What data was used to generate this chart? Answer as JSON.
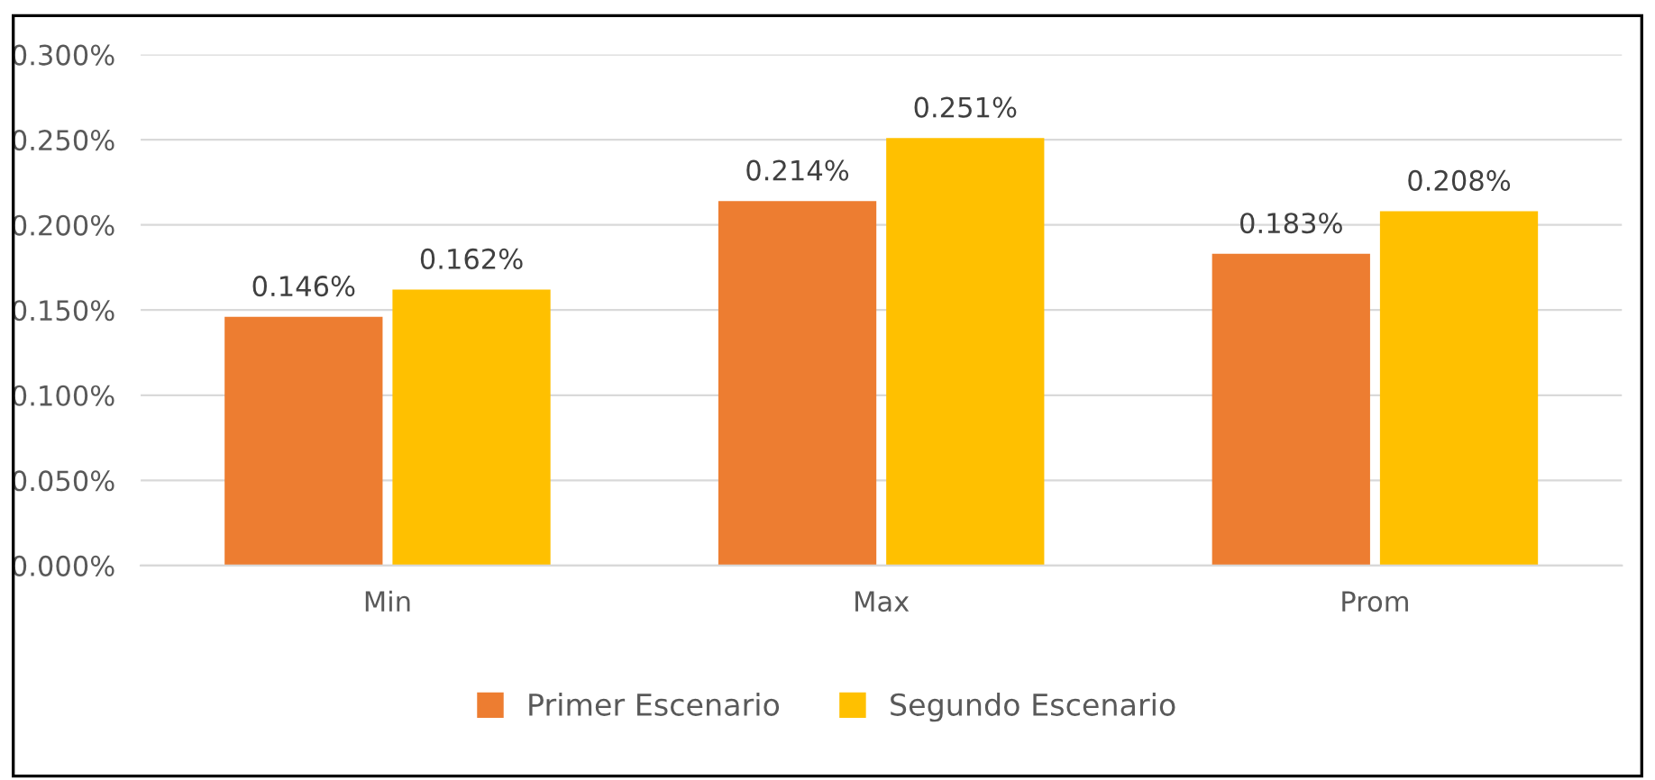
{
  "chart_data": {
    "type": "bar",
    "categories": [
      "Min",
      "Max",
      "Prom"
    ],
    "series": [
      {
        "name": "Primer Escenario",
        "color": "#ed7d31",
        "values": [
          0.146,
          0.214,
          0.183
        ],
        "value_labels": [
          "0.146%",
          "0.214%",
          "0.183%"
        ]
      },
      {
        "name": "Segundo Escenario",
        "color": "#ffc000",
        "values": [
          0.162,
          0.251,
          0.208
        ],
        "value_labels": [
          "0.162%",
          "0.251%",
          "0.208%"
        ]
      }
    ],
    "ylim": [
      0,
      0.3
    ],
    "yticks": [
      {
        "value": 0,
        "label": "0.000%"
      },
      {
        "value": 0.05,
        "label": "0.050%"
      },
      {
        "value": 0.1,
        "label": "0.100%"
      },
      {
        "value": 0.15,
        "label": "0.150%"
      },
      {
        "value": 0.2,
        "label": "0.200%"
      },
      {
        "value": 0.25,
        "label": "0.250%"
      },
      {
        "value": 0.3,
        "label": "0.300%"
      }
    ],
    "grid": "y",
    "legend": "bottom"
  }
}
